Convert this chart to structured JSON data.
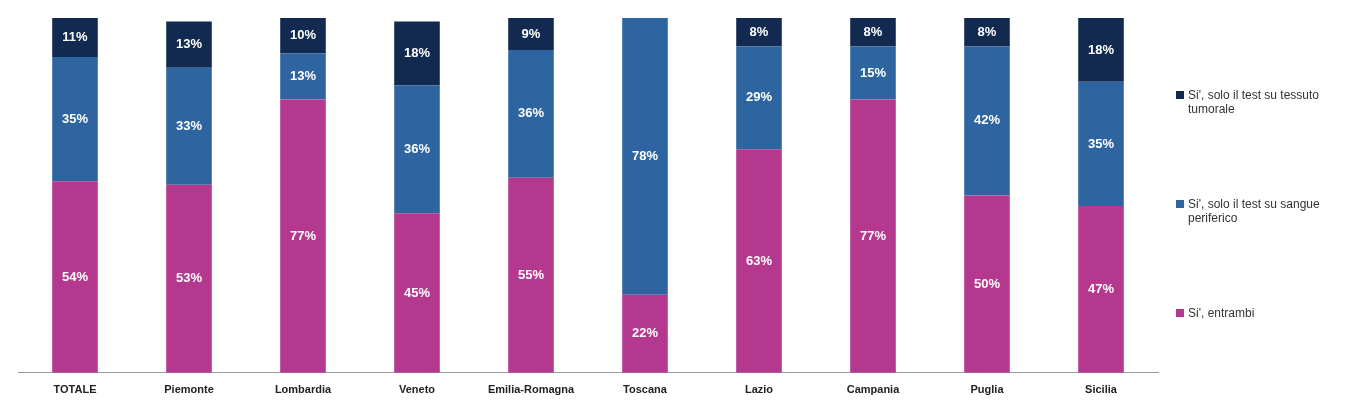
{
  "chart_data": {
    "type": "bar",
    "stacked": true,
    "legend": "right",
    "grid": false,
    "categories": [
      "TOTALE",
      "Piemonte",
      "Lombardia",
      "Veneto",
      "Emilia-Romagna",
      "Toscana",
      "Lazio",
      "Campania",
      "Puglia",
      "Sicilia"
    ],
    "series": [
      {
        "name": "Si', entrambi",
        "color": "#b5388f",
        "values": [
          54,
          53,
          77,
          45,
          55,
          22,
          63,
          77,
          50,
          47
        ],
        "value_labels": [
          "54%",
          "53%",
          "77%",
          "45%",
          "55%",
          "22%",
          "63%",
          "77%",
          "50%",
          "47%"
        ]
      },
      {
        "name": "Si', solo il test su sangue periferico",
        "color": "#2e65a0",
        "values": [
          35,
          33,
          13,
          36,
          36,
          78,
          29,
          15,
          42,
          35
        ],
        "value_labels": [
          "35%",
          "33%",
          "13%",
          "36%",
          "36%",
          "78%",
          "29%",
          "15%",
          "42%",
          "35%"
        ]
      },
      {
        "name": "Si', solo il test su tessuto tumorale",
        "color": "#132a50",
        "values": [
          11,
          13,
          10,
          18,
          9,
          null,
          8,
          8,
          8,
          18
        ],
        "value_labels": [
          "11%",
          "13%",
          "10%",
          "18%",
          "9%",
          null,
          "8%",
          "8%",
          "8%",
          "18%"
        ]
      }
    ]
  }
}
